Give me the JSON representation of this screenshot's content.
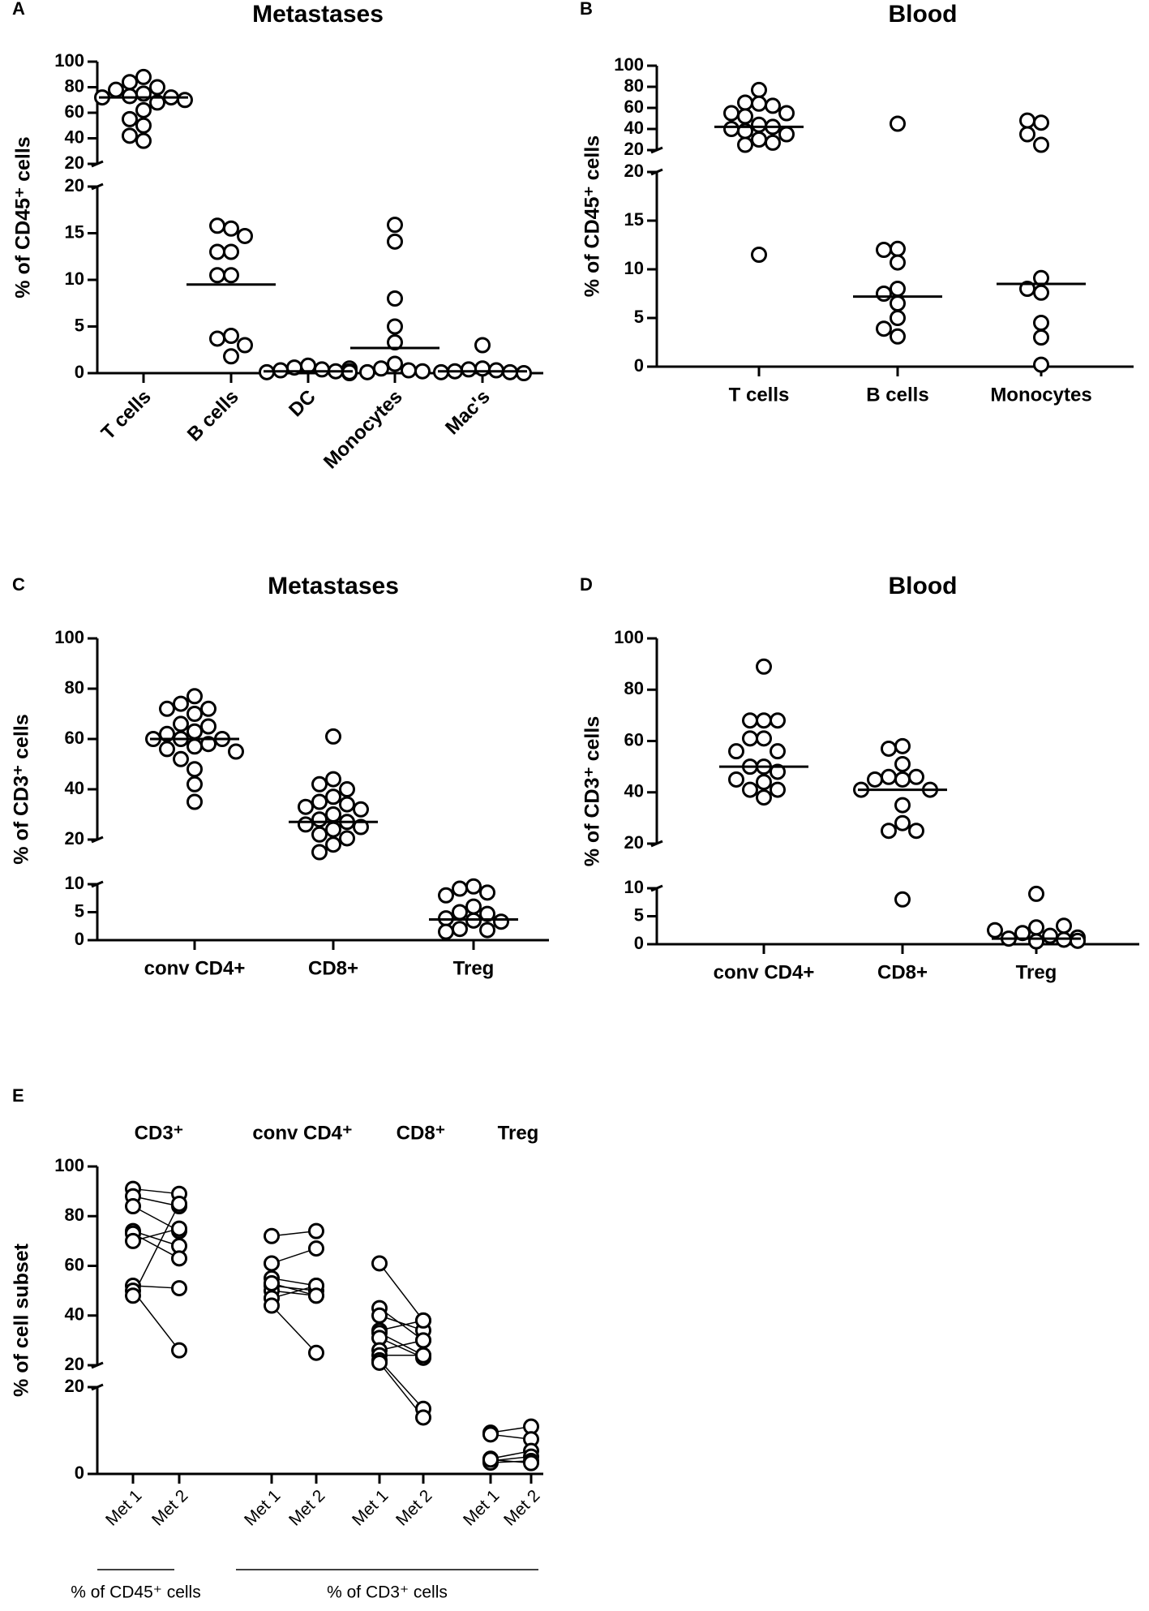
{
  "chart_data": [
    {
      "type": "dot",
      "panel": "A",
      "title": "Metastases",
      "ylabel": "% of CD45⁺ cells",
      "categories": [
        "T cells",
        "B cells",
        "DC",
        "Monocytes",
        "Mac's"
      ],
      "points": [
        [
          88,
          84,
          80,
          78,
          75,
          73,
          72,
          72,
          70,
          68,
          62,
          55,
          50,
          42,
          38
        ],
        [
          15.5,
          15.8,
          14.7,
          13,
          13,
          10.5,
          10.5,
          4,
          3.7,
          3,
          1.8
        ],
        [
          0.8,
          0.6,
          0.4,
          0.3,
          0.2,
          0.1,
          0.5,
          0.2,
          0,
          0.1
        ],
        [
          15.9,
          14.1,
          8,
          5,
          3.3,
          1,
          0.5,
          0.3,
          0.1,
          0.2
        ],
        [
          3,
          0.5,
          0.4,
          0.3,
          0.2,
          0.1,
          0.1,
          0
        ]
      ],
      "medians": [
        72,
        9.5,
        0.2,
        2.7,
        0.2
      ],
      "ylim": [
        0,
        20
      ],
      "yticks": [
        0,
        5,
        10,
        15,
        20
      ],
      "ylim_upper": [
        20,
        100
      ],
      "yticks_upper": [
        20,
        40,
        60,
        80,
        100
      ],
      "rotate_labels": true
    },
    {
      "type": "dot",
      "panel": "B",
      "title": "Blood",
      "ylabel": "% of CD45⁺ cells",
      "categories": [
        "T cells",
        "B cells",
        "Monocytes"
      ],
      "points": [
        [
          77,
          65,
          64,
          62,
          55,
          55,
          52,
          44,
          42,
          40,
          38,
          35,
          30,
          27,
          25,
          11.5
        ],
        [
          45,
          12.1,
          12,
          10.7,
          8,
          7.5,
          6.5,
          5,
          3.9,
          3.1
        ],
        [
          46,
          48,
          35,
          25,
          9.1,
          8,
          7.6,
          4.5,
          3,
          0.2
        ]
      ],
      "medians": [
        42,
        7.2,
        8.5
      ],
      "ylim": [
        0,
        20
      ],
      "yticks": [
        0,
        5,
        10,
        15,
        20
      ],
      "ylim_upper": [
        20,
        100
      ],
      "yticks_upper": [
        20,
        40,
        60,
        80,
        100
      ],
      "rotate_labels": false
    },
    {
      "type": "dot",
      "panel": "C",
      "title": "Metastases",
      "ylabel": "% of CD3⁺ cells",
      "categories": [
        "conv CD4+",
        "CD8+",
        "Treg"
      ],
      "points": [
        [
          77,
          74,
          72,
          72,
          70,
          66,
          65,
          63,
          62,
          60,
          60,
          60,
          58,
          57,
          56,
          55,
          52,
          48,
          42,
          35
        ],
        [
          61,
          44,
          42,
          40,
          37,
          35,
          34,
          33,
          32,
          30,
          28,
          27,
          26,
          25,
          24,
          22,
          20.5,
          18,
          15
        ],
        [
          9.6,
          9.2,
          8.5,
          8,
          6,
          5,
          4.7,
          3.9,
          3.5,
          3.3,
          2,
          1.8,
          1.5
        ]
      ],
      "medians": [
        60,
        27,
        3.7
      ],
      "ylim": [
        0,
        10
      ],
      "yticks": [
        0,
        5,
        10
      ],
      "ylim_upper": [
        20,
        100
      ],
      "yticks_upper": [
        20,
        40,
        60,
        80,
        100
      ],
      "rotate_labels": false
    },
    {
      "type": "dot",
      "panel": "D",
      "title": "Blood",
      "ylabel": "% of CD3⁺ cells",
      "categories": [
        "conv CD4+",
        "CD8+",
        "Treg"
      ],
      "points": [
        [
          89,
          68,
          68,
          68,
          61,
          61,
          56,
          56,
          50,
          50,
          48,
          45,
          44,
          41,
          41,
          38
        ],
        [
          58,
          57,
          51,
          46,
          46,
          45,
          45,
          41,
          41,
          35,
          28,
          25,
          25,
          8
        ],
        [
          9,
          3,
          2,
          1.5,
          1,
          0.8,
          0.5,
          2.5,
          3.3,
          1.2,
          0.6
        ]
      ],
      "medians": [
        50,
        41,
        1
      ],
      "ylim": [
        0,
        10
      ],
      "yticks": [
        0,
        5,
        10
      ],
      "ylim_upper": [
        20,
        100
      ],
      "yticks_upper": [
        20,
        40,
        60,
        80,
        100
      ],
      "rotate_labels": false
    },
    {
      "type": "paired",
      "panel": "E",
      "ylabel": "% of cell subset",
      "groups": [
        {
          "name": "CD3⁺",
          "categories": [
            "Met 1",
            "Met 2"
          ],
          "pairs": [
            [
              91,
              89
            ],
            [
              88,
              84
            ],
            [
              84,
              74
            ],
            [
              74,
              68
            ],
            [
              73,
              63
            ],
            [
              70,
              75
            ],
            [
              52,
              51
            ],
            [
              50,
              26
            ],
            [
              48,
              85
            ]
          ]
        },
        {
          "name": "conv CD4⁺",
          "categories": [
            "Met 1",
            "Met 2"
          ],
          "pairs": [
            [
              72,
              74
            ],
            [
              61,
              67
            ],
            [
              55,
              52
            ],
            [
              52,
              50
            ],
            [
              50,
              48
            ],
            [
              47,
              52
            ],
            [
              44,
              25
            ],
            [
              53,
              48
            ]
          ]
        },
        {
          "name": "CD8⁺",
          "categories": [
            "Met 1",
            "Met 2"
          ],
          "pairs": [
            [
              61,
              38
            ],
            [
              43,
              30
            ],
            [
              40,
              34
            ],
            [
              34,
              38
            ],
            [
              33,
              24
            ],
            [
              31,
              23
            ],
            [
              26,
              30
            ],
            [
              24,
              24
            ],
            [
              22,
              15
            ],
            [
              21,
              13
            ]
          ]
        },
        {
          "name": "Treg",
          "categories": [
            "Met 1",
            "Met 2"
          ],
          "pairs": [
            [
              9.5,
              10.9
            ],
            [
              9.1,
              8
            ],
            [
              3.5,
              5.3
            ],
            [
              3,
              4
            ],
            [
              2.6,
              3
            ],
            [
              3.3,
              2.5
            ]
          ]
        }
      ],
      "footnotes": [
        "% of CD45⁺ cells",
        "% of CD3⁺ cells"
      ],
      "ylim": [
        0,
        20
      ],
      "yticks": [
        0,
        20
      ],
      "ylim_upper": [
        20,
        100
      ],
      "yticks_upper": [
        20,
        40,
        60,
        80,
        100
      ]
    }
  ]
}
